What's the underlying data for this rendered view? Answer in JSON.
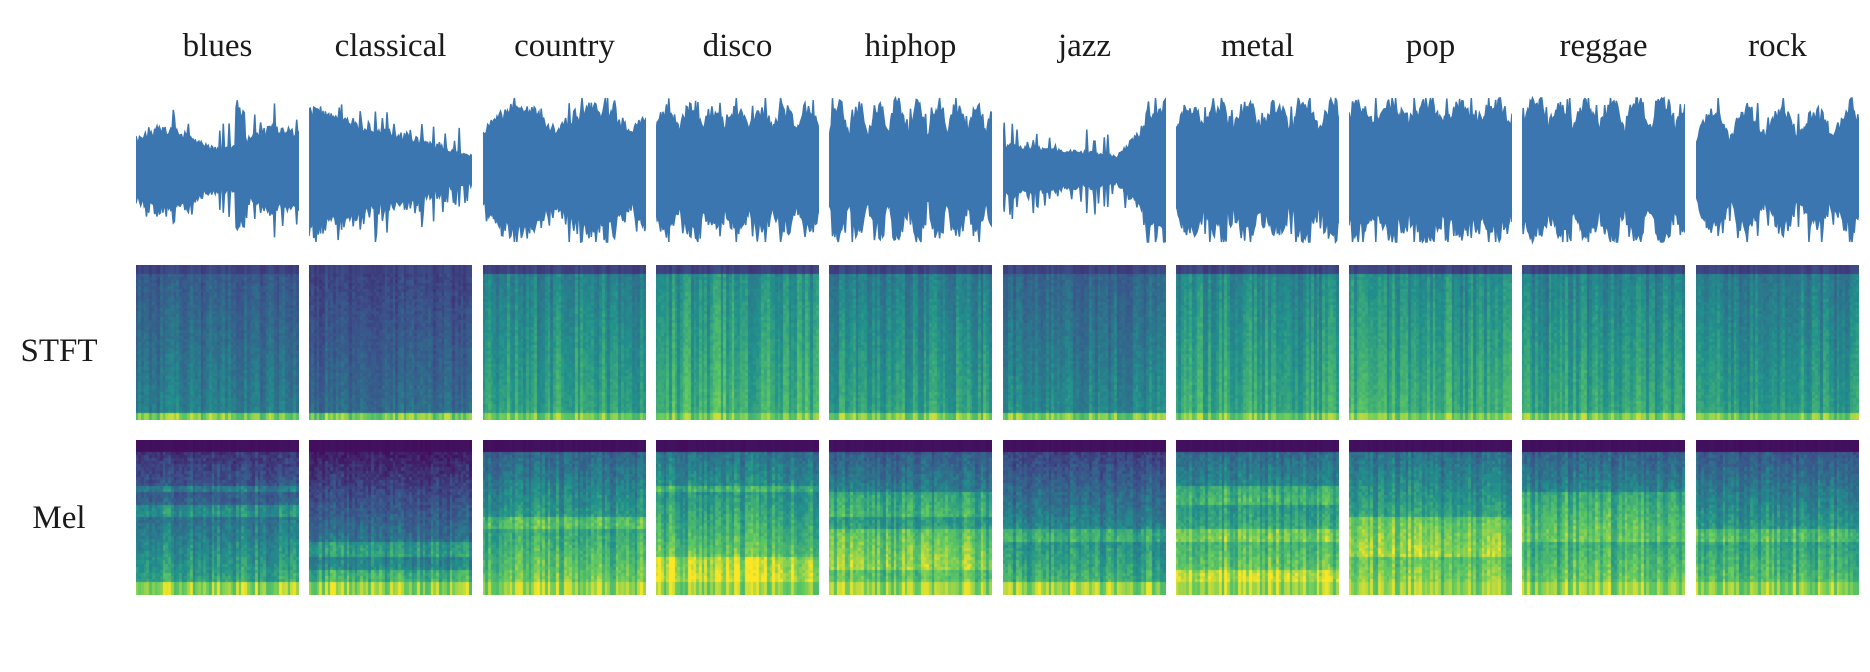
{
  "genres": [
    "blues",
    "classical",
    "country",
    "disco",
    "hiphop",
    "jazz",
    "metal",
    "pop",
    "reggae",
    "rock"
  ],
  "rows": {
    "stft_label": "STFT",
    "mel_label": "Mel"
  },
  "colors": {
    "waveform": "#3b76b0",
    "colormap": [
      "#440154",
      "#3b528b",
      "#21918c",
      "#5ec962",
      "#fde725"
    ]
  },
  "icons": {
    "waveform": "waveform-icon",
    "spectrogram": "spectrogram-image"
  }
}
